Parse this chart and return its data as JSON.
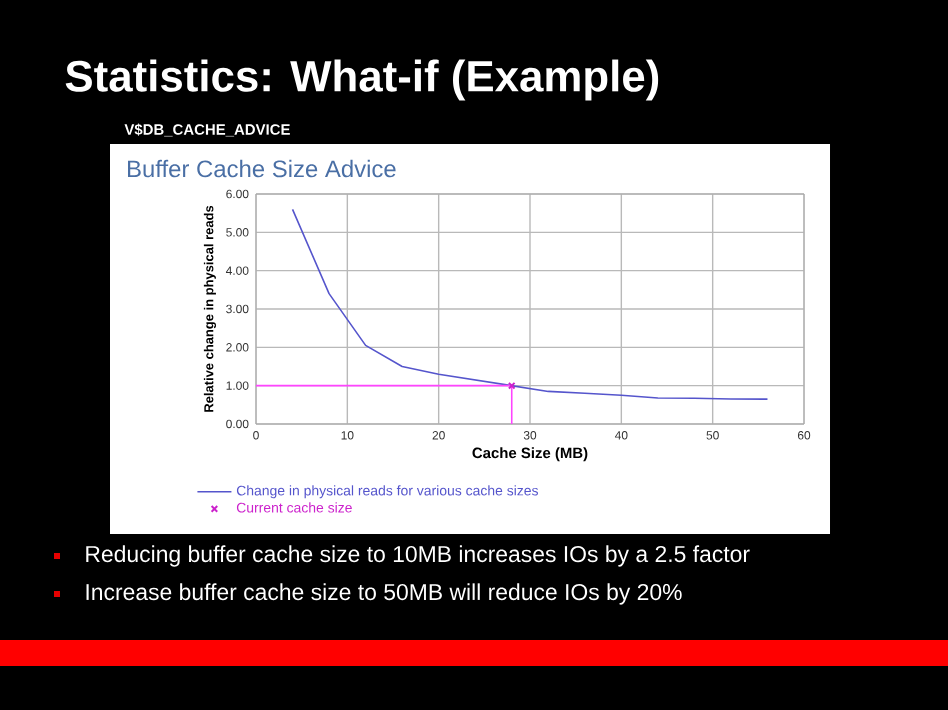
{
  "chart_data": {
    "type": "line",
    "title": "Buffer Cache Size Advice",
    "xlabel": "Cache Size (MB)",
    "ylabel": "Relative change in physical reads",
    "xlim": [
      0,
      60
    ],
    "xticks": [
      0,
      10,
      20,
      30,
      40,
      50,
      60
    ],
    "ylim": [
      0,
      6
    ],
    "yticks": [
      {
        "value": 0,
        "label": "0.00"
      },
      {
        "value": 1,
        "label": "1.00"
      },
      {
        "value": 2,
        "label": "2.00"
      },
      {
        "value": 3,
        "label": "3.00"
      },
      {
        "value": 4,
        "label": "4.00"
      },
      {
        "value": 5,
        "label": "5.00"
      },
      {
        "value": 6,
        "label": "6.00"
      }
    ],
    "grid": true,
    "legend": "bottom",
    "marker": "none",
    "series": [
      {
        "name": "Change in physical reads for various cache sizes",
        "color": "#5555cc",
        "x": [
          4,
          8,
          12,
          16,
          20,
          24,
          28,
          32,
          36,
          40,
          44,
          48,
          52,
          56
        ],
        "values": [
          5.6,
          3.4,
          2.05,
          1.5,
          1.3,
          1.15,
          1.0,
          0.85,
          0.8,
          0.75,
          0.68,
          0.67,
          0.65,
          0.65
        ]
      },
      {
        "name": "Current cache size",
        "type": "scatter",
        "marker": "cross",
        "color": "#cc22cc",
        "x": [
          28
        ],
        "values": [
          1.0
        ]
      }
    ],
    "ref_lines": [
      {
        "axis": "y",
        "value": 1.0,
        "color": "#ff44ff"
      },
      {
        "axis": "x",
        "value": 28,
        "color": "#ff44ff"
      }
    ],
    "annotations": [
      "Statistics: What-if (Example)",
      "V$DB_CACHE_ADVICE",
      "Reducing buffer cache size to 10MB increases IOs by a 2.5 factor",
      "Increase buffer cache size to 50MB will reduce IOs by 20%"
    ]
  }
}
